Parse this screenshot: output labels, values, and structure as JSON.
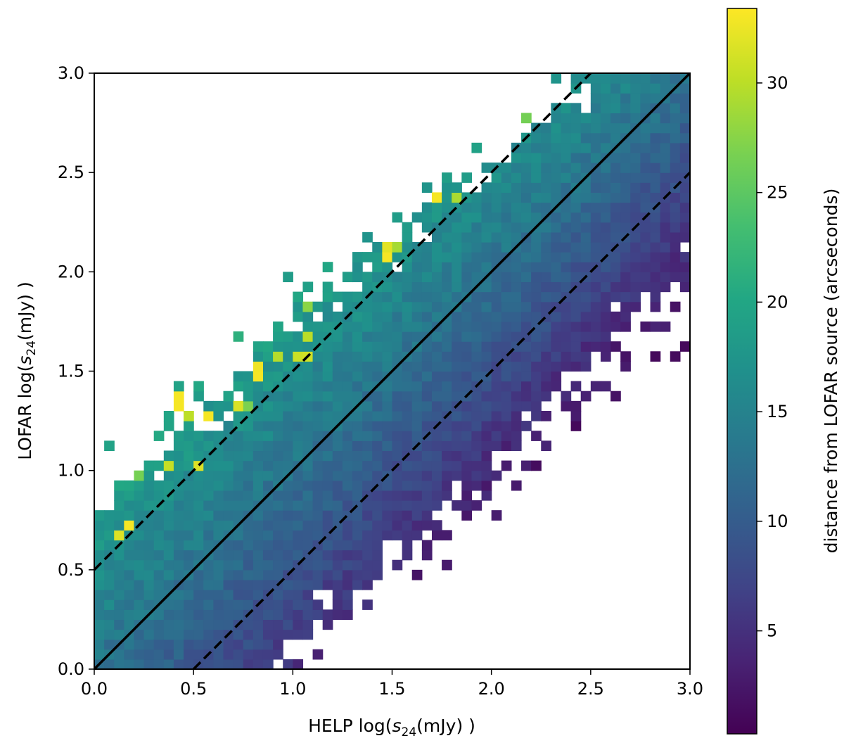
{
  "chart_data": {
    "type": "heatmap",
    "title": "",
    "xlabel": "HELP log(s24(mJy) )",
    "ylabel": "LOFAR log(s24(mJy) )",
    "xlabel_parts": {
      "pre": "HELP log(",
      "var": "s",
      "sub": "24",
      "post": "(mJy) )"
    },
    "ylabel_parts": {
      "pre": "LOFAR log(",
      "var": "s",
      "sub": "24",
      "post": "(mJy) )"
    },
    "xlim": [
      0.0,
      3.0
    ],
    "ylim": [
      0.0,
      3.0
    ],
    "xticks": [
      "0.0",
      "0.5",
      "1.0",
      "1.5",
      "2.0",
      "2.5",
      "3.0"
    ],
    "yticks": [
      "0.0",
      "0.5",
      "1.0",
      "1.5",
      "2.0",
      "2.5",
      "3.0"
    ],
    "bin_width": 0.05,
    "colormap": "viridis",
    "colorbar": {
      "label": "distance from LOFAR source (arcseconds)",
      "range": [
        0.3,
        33.4
      ],
      "ticks": [
        "5",
        "10",
        "15",
        "20",
        "25",
        "30"
      ]
    },
    "reference_lines": [
      {
        "name": "one-to-one",
        "style": "solid",
        "points": [
          [
            0.0,
            0.0
          ],
          [
            3.0,
            3.0
          ]
        ]
      },
      {
        "name": "upper-offset",
        "style": "dashed",
        "points": [
          [
            0.0,
            0.5
          ],
          [
            2.5,
            3.0
          ]
        ]
      },
      {
        "name": "lower-offset",
        "style": "dashed",
        "points": [
          [
            0.5,
            0.0
          ],
          [
            3.0,
            2.5
          ]
        ]
      }
    ],
    "colors": {
      "line": "#000000",
      "frame": "#000000"
    }
  }
}
